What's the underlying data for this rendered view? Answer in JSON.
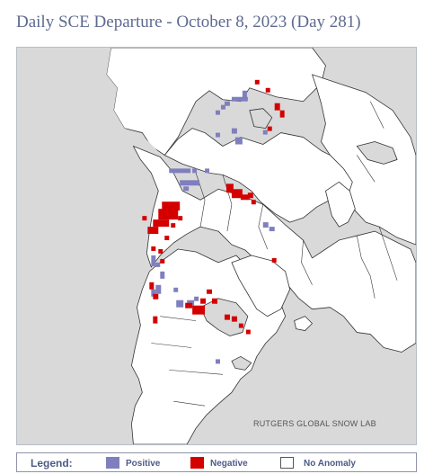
{
  "title": "Daily SCE Departure - October 8, 2023 (Day 281)",
  "credit": "RUTGERS GLOBAL SNOW LAB",
  "legend": {
    "title": "Legend:",
    "items": [
      {
        "label": "Positive",
        "color": "#7f7fbf"
      },
      {
        "label": "Negative",
        "color": "#d40000"
      },
      {
        "label": "No Anomaly",
        "color": "#ffffff"
      }
    ]
  },
  "colors": {
    "ocean": "#d9d9d9",
    "land": "#ffffff",
    "border": "#333333",
    "positive": "#7f7fbf",
    "negative": "#d40000"
  }
}
